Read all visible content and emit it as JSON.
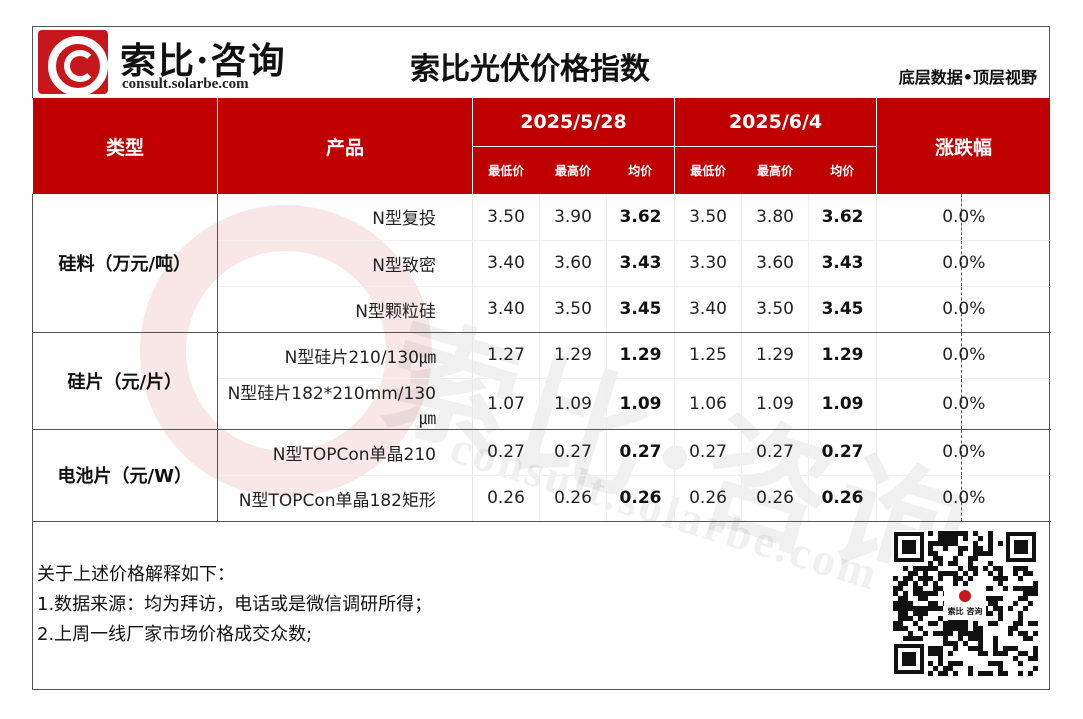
{
  "brand": {
    "name": "索比·咨询",
    "url": "consult.solarbe.com"
  },
  "title": "索比光伏价格指数",
  "slogan": "底层数据•顶层视野",
  "table": {
    "col_type": "类型",
    "col_product": "产品",
    "col_change": "涨跌幅",
    "dates": [
      "2025/5/28",
      "2025/6/4"
    ],
    "sub_headers": [
      "最低价",
      "最高价",
      "均价"
    ],
    "groups": [
      {
        "category": "硅料（万元/吨）",
        "rows": [
          {
            "product": "N型复投",
            "d1": [
              "3.50",
              "3.90",
              "3.62"
            ],
            "d2": [
              "3.50",
              "3.80",
              "3.62"
            ],
            "change": "0.0%"
          },
          {
            "product": "N型致密",
            "d1": [
              "3.40",
              "3.60",
              "3.43"
            ],
            "d2": [
              "3.30",
              "3.60",
              "3.43"
            ],
            "change": "0.0%"
          },
          {
            "product": "N型颗粒硅",
            "d1": [
              "3.40",
              "3.50",
              "3.45"
            ],
            "d2": [
              "3.40",
              "3.50",
              "3.45"
            ],
            "change": "0.0%"
          }
        ]
      },
      {
        "category": "硅片（元/片）",
        "rows": [
          {
            "product": "N型硅片210/130㎛",
            "d1": [
              "1.27",
              "1.29",
              "1.29"
            ],
            "d2": [
              "1.25",
              "1.29",
              "1.29"
            ],
            "change": "0.0%"
          },
          {
            "product": "N型硅片182*210mm/130㎛",
            "d1": [
              "1.07",
              "1.09",
              "1.09"
            ],
            "d2": [
              "1.06",
              "1.09",
              "1.09"
            ],
            "change": "0.0%"
          }
        ]
      },
      {
        "category": "电池片（元/W）",
        "rows": [
          {
            "product": "N型TOPCon单晶210",
            "d1": [
              "0.27",
              "0.27",
              "0.27"
            ],
            "d2": [
              "0.27",
              "0.27",
              "0.27"
            ],
            "change": "0.0%"
          },
          {
            "product": "N型TOPCon单晶182矩形",
            "d1": [
              "0.26",
              "0.26",
              "0.26"
            ],
            "d2": [
              "0.26",
              "0.26",
              "0.26"
            ],
            "change": "0.0%"
          }
        ]
      }
    ]
  },
  "notes": [
    "关于上述价格解释如下：",
    "1.数据来源：均为拜访，电话或是微信调研所得；",
    "2.上周一线厂家市场价格成交众数;"
  ],
  "qr_label": "索比 咨询",
  "colors": {
    "header_red": "#c00000",
    "brand_red": "#c8161d"
  }
}
